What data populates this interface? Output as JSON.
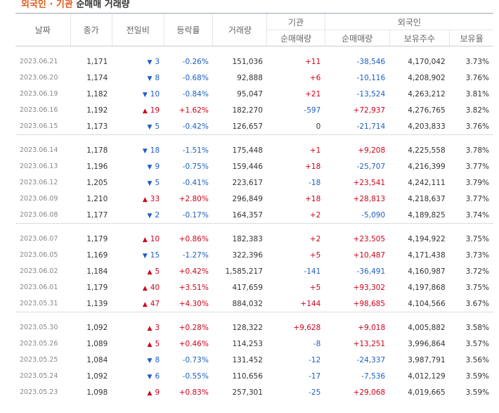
{
  "title": {
    "accent": "외국인 · 기관",
    "rest": "순매매 거래량"
  },
  "headers": {
    "date": "날짜",
    "close": "종가",
    "change": "전일비",
    "rate": "등락률",
    "volume": "거래량",
    "inst_group": "기관",
    "foreign_group": "외국인",
    "inst_net": "순매매량",
    "foreign_net": "순매매량",
    "holdings": "보유주수",
    "ratio": "보유율"
  },
  "colors": {
    "up": "#d0021b",
    "down": "#1c5fc4"
  },
  "groups": [
    [
      {
        "date": "2023.06.21",
        "close": "1,171",
        "dir": "down",
        "change": "3",
        "rate": "-0.26%",
        "volume": "151,036",
        "inst": "+11",
        "foreign": "-38,546",
        "holdings": "4,170,042",
        "ratio": "3.73%"
      },
      {
        "date": "2023.06.20",
        "close": "1,174",
        "dir": "down",
        "change": "8",
        "rate": "-0.68%",
        "volume": "92,888",
        "inst": "+6",
        "foreign": "-10,116",
        "holdings": "4,208,902",
        "ratio": "3.76%"
      },
      {
        "date": "2023.06.19",
        "close": "1,182",
        "dir": "down",
        "change": "10",
        "rate": "-0.84%",
        "volume": "95,047",
        "inst": "+21",
        "foreign": "-13,524",
        "holdings": "4,263,212",
        "ratio": "3.81%"
      },
      {
        "date": "2023.06.16",
        "close": "1,192",
        "dir": "up",
        "change": "19",
        "rate": "+1.62%",
        "volume": "182,270",
        "inst": "-597",
        "foreign": "+72,937",
        "holdings": "4,276,765",
        "ratio": "3.82%"
      },
      {
        "date": "2023.06.15",
        "close": "1,173",
        "dir": "down",
        "change": "5",
        "rate": "-0.42%",
        "volume": "126,657",
        "inst": "0",
        "foreign": "-21,714",
        "holdings": "4,203,833",
        "ratio": "3.76%"
      }
    ],
    [
      {
        "date": "2023.06.14",
        "close": "1,178",
        "dir": "down",
        "change": "18",
        "rate": "-1.51%",
        "volume": "175,448",
        "inst": "+1",
        "foreign": "+9,208",
        "holdings": "4,225,558",
        "ratio": "3.78%"
      },
      {
        "date": "2023.06.13",
        "close": "1,196",
        "dir": "down",
        "change": "9",
        "rate": "-0.75%",
        "volume": "159,446",
        "inst": "+18",
        "foreign": "-25,707",
        "holdings": "4,216,399",
        "ratio": "3.77%"
      },
      {
        "date": "2023.06.12",
        "close": "1,205",
        "dir": "down",
        "change": "5",
        "rate": "-0.41%",
        "volume": "223,617",
        "inst": "-18",
        "foreign": "+23,541",
        "holdings": "4,242,111",
        "ratio": "3.79%"
      },
      {
        "date": "2023.06.09",
        "close": "1,210",
        "dir": "up",
        "change": "33",
        "rate": "+2.80%",
        "volume": "296,849",
        "inst": "+18",
        "foreign": "+28,813",
        "holdings": "4,218,637",
        "ratio": "3.77%"
      },
      {
        "date": "2023.06.08",
        "close": "1,177",
        "dir": "down",
        "change": "2",
        "rate": "-0.17%",
        "volume": "164,357",
        "inst": "+2",
        "foreign": "-5,090",
        "holdings": "4,189,825",
        "ratio": "3.74%"
      }
    ],
    [
      {
        "date": "2023.06.07",
        "close": "1,179",
        "dir": "up",
        "change": "10",
        "rate": "+0.86%",
        "volume": "182,383",
        "inst": "+2",
        "foreign": "+23,505",
        "holdings": "4,194,922",
        "ratio": "3.75%"
      },
      {
        "date": "2023.06.05",
        "close": "1,169",
        "dir": "down",
        "change": "15",
        "rate": "-1.27%",
        "volume": "322,396",
        "inst": "+5",
        "foreign": "+10,487",
        "holdings": "4,171,438",
        "ratio": "3.73%"
      },
      {
        "date": "2023.06.02",
        "close": "1,184",
        "dir": "up",
        "change": "5",
        "rate": "+0.42%",
        "volume": "1,585,217",
        "inst": "-141",
        "foreign": "-36,491",
        "holdings": "4,160,987",
        "ratio": "3.72%"
      },
      {
        "date": "2023.06.01",
        "close": "1,179",
        "dir": "up",
        "change": "40",
        "rate": "+3.51%",
        "volume": "417,659",
        "inst": "+5",
        "foreign": "+93,302",
        "holdings": "4,197,868",
        "ratio": "3.75%"
      },
      {
        "date": "2023.05.31",
        "close": "1,139",
        "dir": "up",
        "change": "47",
        "rate": "+4.30%",
        "volume": "884,032",
        "inst": "+144",
        "foreign": "+98,685",
        "holdings": "4,104,566",
        "ratio": "3.67%"
      }
    ],
    [
      {
        "date": "2023.05.30",
        "close": "1,092",
        "dir": "up",
        "change": "3",
        "rate": "+0.28%",
        "volume": "128,322",
        "inst": "+9,628",
        "foreign": "+9,018",
        "holdings": "4,005,882",
        "ratio": "3.58%"
      },
      {
        "date": "2023.05.26",
        "close": "1,089",
        "dir": "up",
        "change": "5",
        "rate": "+0.46%",
        "volume": "114,253",
        "inst": "-8",
        "foreign": "+13,251",
        "holdings": "3,996,864",
        "ratio": "3.57%"
      },
      {
        "date": "2023.05.25",
        "close": "1,084",
        "dir": "down",
        "change": "8",
        "rate": "-0.73%",
        "volume": "131,452",
        "inst": "-12",
        "foreign": "-24,337",
        "holdings": "3,987,791",
        "ratio": "3.56%"
      },
      {
        "date": "2023.05.24",
        "close": "1,092",
        "dir": "down",
        "change": "6",
        "rate": "-0.55%",
        "volume": "110,656",
        "inst": "-17",
        "foreign": "-7,536",
        "holdings": "4,012,129",
        "ratio": "3.59%"
      },
      {
        "date": "2023.05.23",
        "close": "1,098",
        "dir": "up",
        "change": "9",
        "rate": "+0.83%",
        "volume": "257,301",
        "inst": "-25",
        "foreign": "+29,068",
        "holdings": "4,019,665",
        "ratio": "3.59%"
      }
    ]
  ]
}
